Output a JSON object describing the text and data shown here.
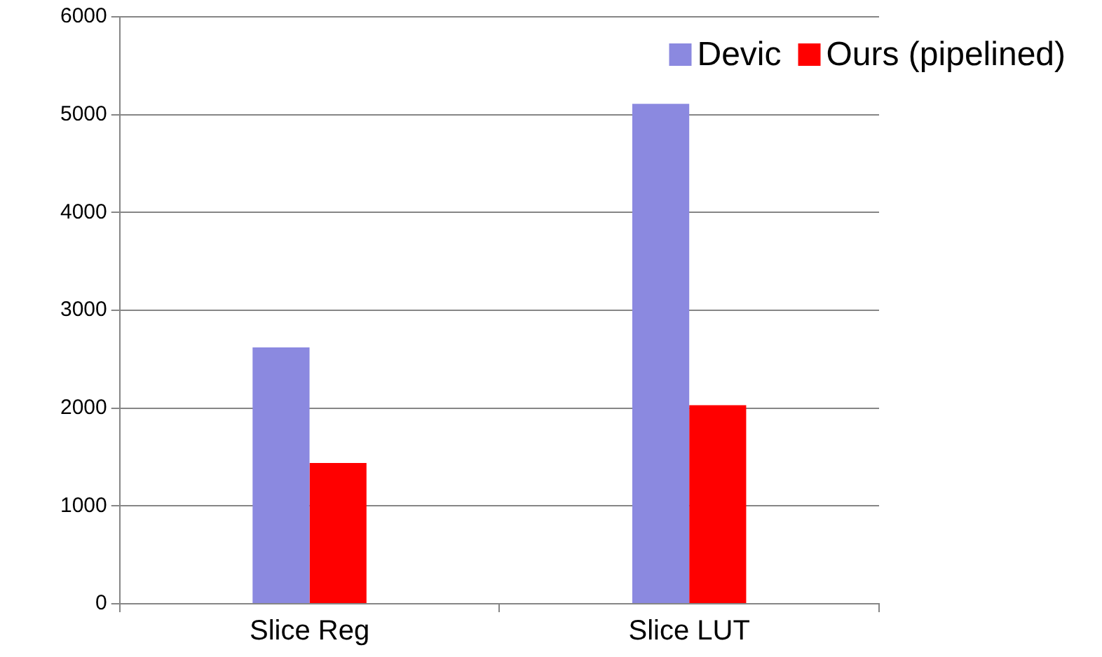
{
  "chart_data": {
    "type": "bar",
    "categories": [
      "Slice Reg",
      "Slice LUT"
    ],
    "series": [
      {
        "name": "Devic",
        "color": "#8b89e0",
        "values": [
          2620,
          5110
        ]
      },
      {
        "name": "Ours (pipelined)",
        "color": "#ff0000",
        "values": [
          1440,
          2030
        ]
      }
    ],
    "ylim": [
      0,
      6000
    ],
    "yticks": [
      0,
      1000,
      2000,
      3000,
      4000,
      5000,
      6000
    ],
    "grid": "y",
    "legend": "top right"
  }
}
